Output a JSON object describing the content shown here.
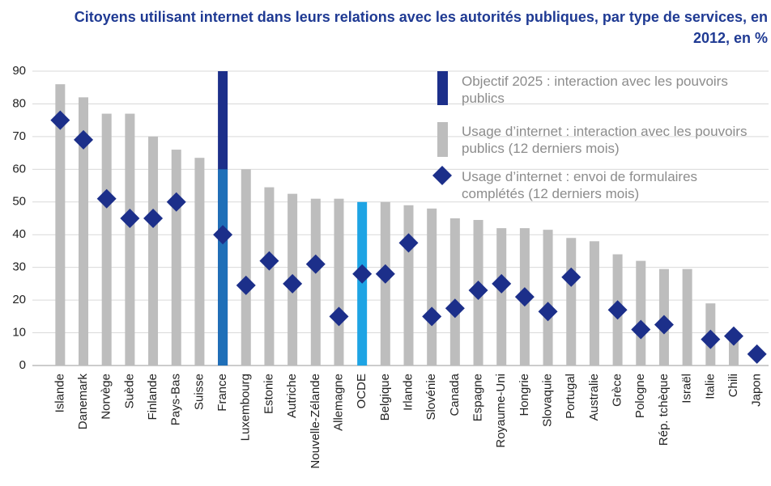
{
  "chart_data": {
    "type": "bar",
    "title": "Citoyens utilisant internet dans leurs relations avec les autorités publiques, par type de services, en 2012, en %",
    "categories": [
      "Islande",
      "Danemark",
      "Norvège",
      "Suède",
      "Finlande",
      "Pays-Bas",
      "Suisse",
      "France",
      "Luxembourg",
      "Estonie",
      "Autriche",
      "Nouvelle-Zélande",
      "Allemagne",
      "OCDE",
      "Belgique",
      "Irlande",
      "Slovénie",
      "Canada",
      "Espagne",
      "Royaume-Uni",
      "Hongrie",
      "Slovaquie",
      "Portugal",
      "Australie",
      "Grèce",
      "Pologne",
      "Rép. tchèque",
      "Israël",
      "Italie",
      "Chili",
      "Japon"
    ],
    "series": [
      {
        "name": "Objectif 2025 : interaction avec les pouvoirs publics",
        "kind": "bar",
        "color": "#1c2f8a",
        "values": [
          null,
          null,
          null,
          null,
          null,
          null,
          null,
          90,
          null,
          null,
          null,
          null,
          null,
          null,
          null,
          null,
          null,
          null,
          null,
          null,
          null,
          null,
          null,
          null,
          null,
          null,
          null,
          null,
          null,
          null,
          null
        ]
      },
      {
        "name": "Usage d’internet : interaction avec les pouvoirs publics (12 derniers mois)",
        "kind": "bar",
        "color": "#bdbdbd",
        "colors": [
          "#bdbdbd",
          "#bdbdbd",
          "#bdbdbd",
          "#bdbdbd",
          "#bdbdbd",
          "#bdbdbd",
          "#bdbdbd",
          "#1f6fb8",
          "#bdbdbd",
          "#bdbdbd",
          "#bdbdbd",
          "#bdbdbd",
          "#bdbdbd",
          "#1ea4e4",
          "#bdbdbd",
          "#bdbdbd",
          "#bdbdbd",
          "#bdbdbd",
          "#bdbdbd",
          "#bdbdbd",
          "#bdbdbd",
          "#bdbdbd",
          "#bdbdbd",
          "#bdbdbd",
          "#bdbdbd",
          "#bdbdbd",
          "#bdbdbd",
          "#bdbdbd",
          "#bdbdbd",
          "#bdbdbd",
          "#bdbdbd"
        ],
        "values": [
          86,
          82,
          77,
          77,
          70,
          66,
          63.5,
          60,
          60,
          54.5,
          52.5,
          51,
          51,
          50,
          50,
          49,
          48,
          45,
          44.5,
          42,
          42,
          41.5,
          39,
          38,
          34,
          32,
          29.5,
          29.5,
          19,
          8,
          null
        ]
      },
      {
        "name": "Usage d’internet : envoi de formulaires complétés (12 derniers mois)",
        "kind": "diamond",
        "color": "#1c2f8a",
        "values": [
          75,
          69,
          51,
          45,
          45,
          50,
          null,
          40,
          24.5,
          32,
          25,
          31,
          15,
          28,
          28,
          37.5,
          15,
          17.5,
          23,
          25,
          21,
          16.5,
          27,
          null,
          17,
          11,
          12.5,
          null,
          8,
          9,
          3.5
        ]
      }
    ],
    "ylim": [
      0,
      90
    ],
    "yticks": [
      0,
      10,
      20,
      30,
      40,
      50,
      60,
      70,
      80,
      90
    ],
    "grid": true
  }
}
